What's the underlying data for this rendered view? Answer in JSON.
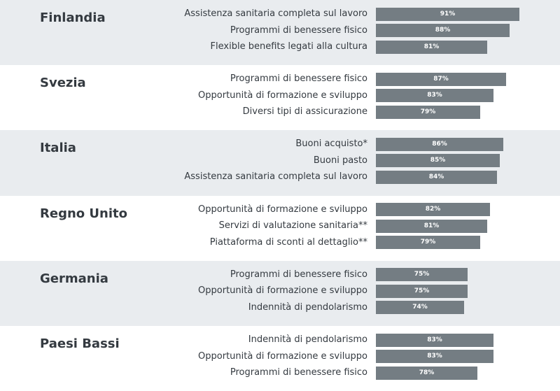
{
  "chart_data": {
    "type": "bar",
    "orientation": "horizontal",
    "groups": [
      {
        "country": "Finlandia",
        "items": [
          {
            "label": "Assistenza sanitaria completa sul lavoro",
            "value": 91,
            "text": "91%"
          },
          {
            "label": "Programmi di benessere fisico",
            "value": 88,
            "text": "88%"
          },
          {
            "label": "Flexible benefits legati alla cultura",
            "value": 81,
            "text": "81%"
          }
        ]
      },
      {
        "country": "Svezia",
        "items": [
          {
            "label": "Programmi di benessere fisico",
            "value": 87,
            "text": "87%"
          },
          {
            "label": "Opportunità di formazione e sviluppo",
            "value": 83,
            "text": "83%"
          },
          {
            "label": "Diversi tipi di assicurazione",
            "value": 79,
            "text": "79%"
          }
        ]
      },
      {
        "country": "Italia",
        "items": [
          {
            "label": "Buoni acquisto*",
            "value": 86,
            "text": "86%"
          },
          {
            "label": "Buoni pasto",
            "value": 85,
            "text": "85%"
          },
          {
            "label": "Assistenza sanitaria completa sul lavoro",
            "value": 84,
            "text": "84%"
          }
        ]
      },
      {
        "country": "Regno Unito",
        "items": [
          {
            "label": "Opportunità di formazione e sviluppo",
            "value": 82,
            "text": "82%"
          },
          {
            "label": "Servizi di valutazione sanitaria**",
            "value": 81,
            "text": "81%"
          },
          {
            "label": "Piattaforma di sconti al dettaglio**",
            "value": 79,
            "text": "79%"
          }
        ]
      },
      {
        "country": "Germania",
        "items": [
          {
            "label": "Programmi di benessere fisico",
            "value": 75,
            "text": "75%"
          },
          {
            "label": "Opportunità di formazione e sviluppo",
            "value": 75,
            "text": "75%"
          },
          {
            "label": "Indennità di pendolarismo",
            "value": 74,
            "text": "74%"
          }
        ]
      },
      {
        "country": "Paesi Bassi",
        "items": [
          {
            "label": "Indennità di pendolarismo",
            "value": 83,
            "text": "83%"
          },
          {
            "label": "Opportunità di formazione e sviluppo",
            "value": 83,
            "text": "83%"
          },
          {
            "label": "Programmi di benessere fisico",
            "value": 78,
            "text": "78%"
          }
        ]
      }
    ],
    "colors": {
      "bar": "#747d83",
      "band_shaded": "#e9ecef",
      "text": "#343a40"
    }
  }
}
